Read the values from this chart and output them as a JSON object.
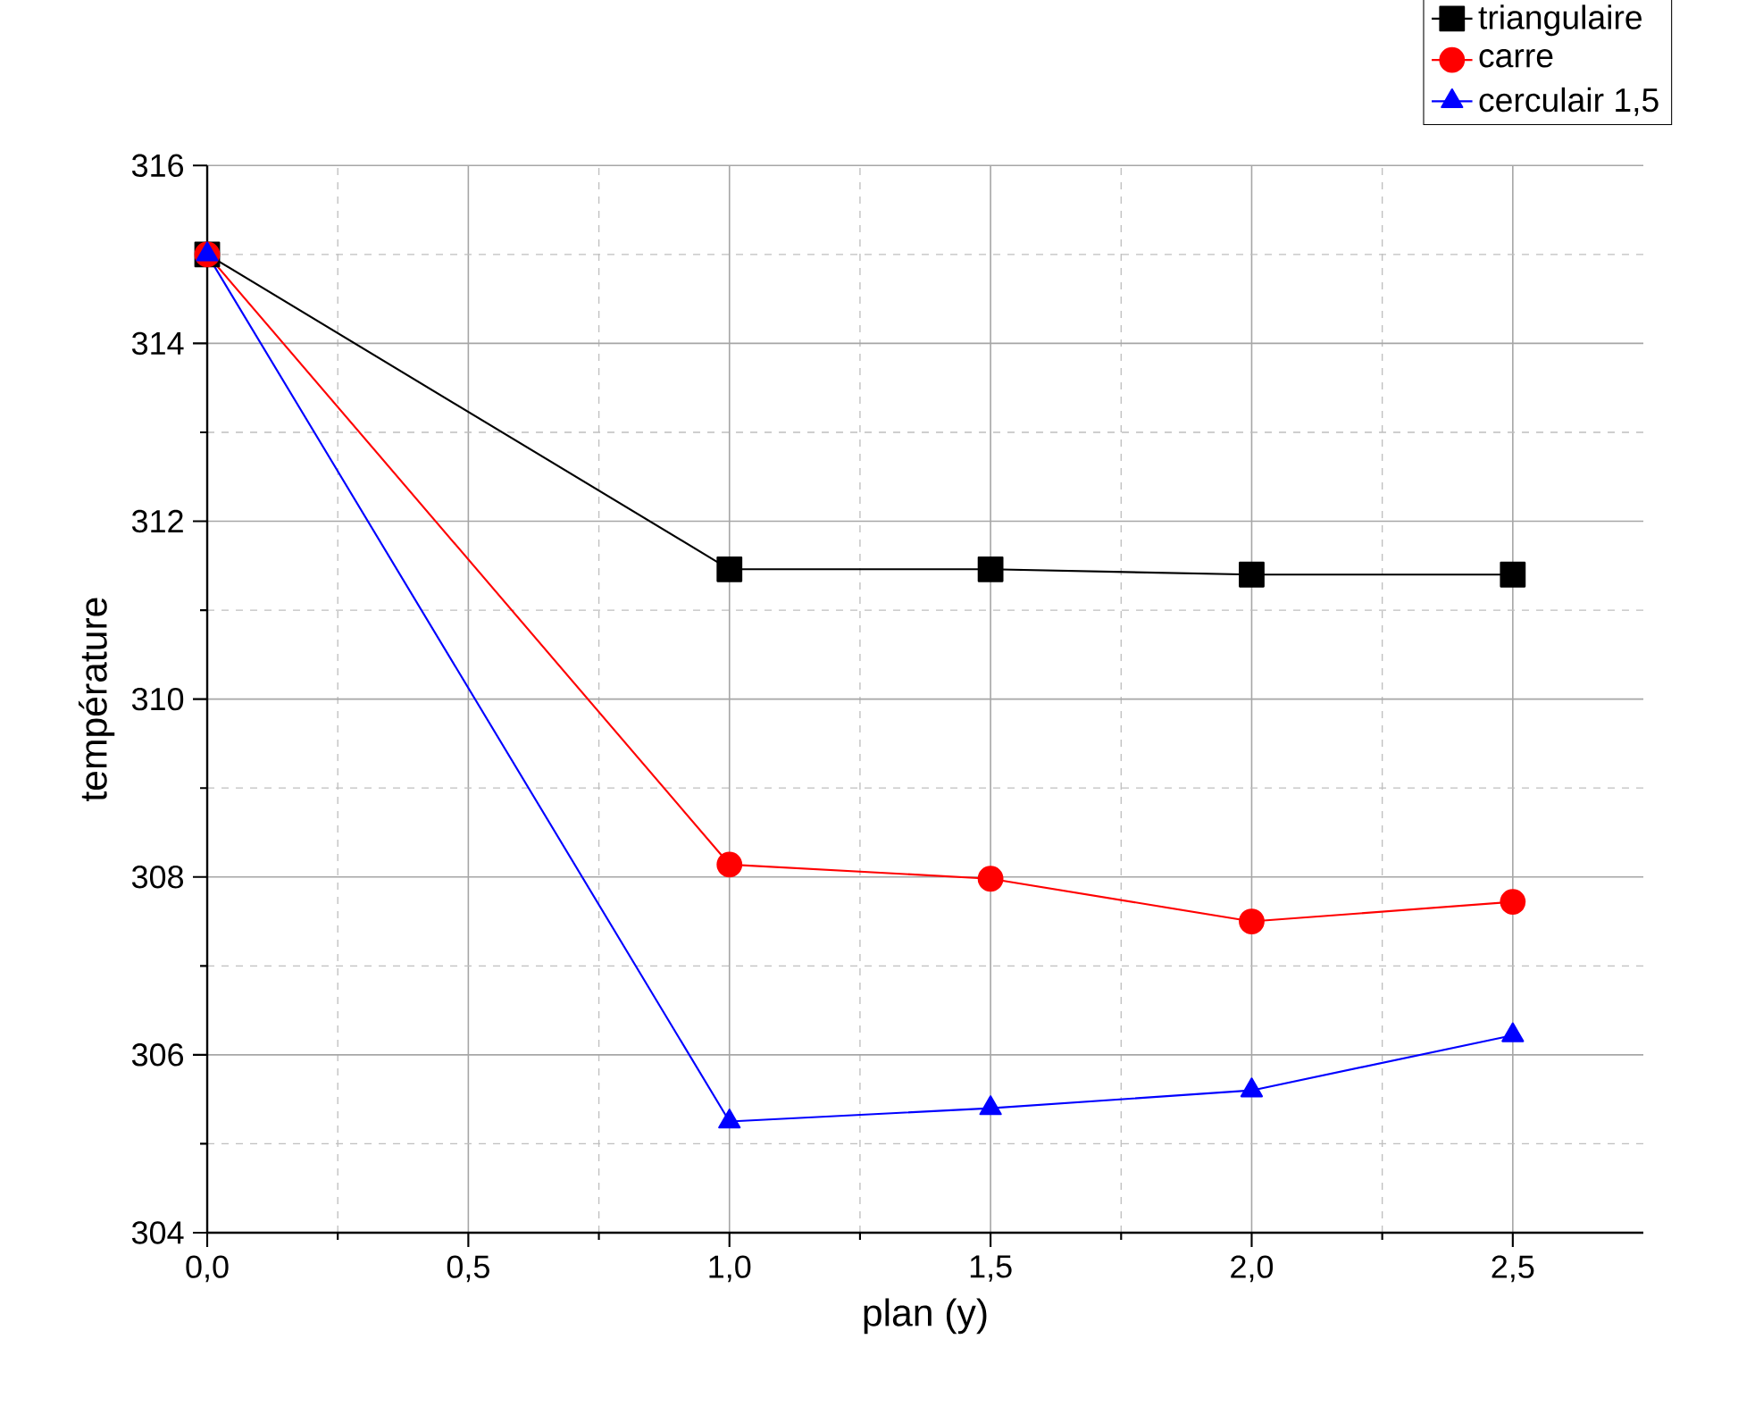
{
  "chart_data": {
    "type": "line",
    "xlabel": "plan (y)",
    "ylabel": "température",
    "x": [
      0,
      1,
      1.5,
      2,
      2.5
    ],
    "series": [
      {
        "name": "triangulaire",
        "color": "#000000",
        "marker": "square",
        "values": [
          315,
          311.46,
          311.46,
          311.4,
          311.4
        ]
      },
      {
        "name": "carre",
        "color": "#ff0000",
        "marker": "circle",
        "values": [
          315,
          308.14,
          307.98,
          307.5,
          307.72
        ]
      },
      {
        "name": "cerculair 1,5",
        "color": "#0000ff",
        "marker": "triangle",
        "values": [
          315,
          305.25,
          305.4,
          305.6,
          306.22
        ]
      }
    ],
    "xlim": [
      0,
      2.75
    ],
    "ylim": [
      304,
      316
    ],
    "xticks": [
      {
        "value": 0,
        "label": "0,0"
      },
      {
        "value": 0.5,
        "label": "0,5"
      },
      {
        "value": 1,
        "label": "1,0"
      },
      {
        "value": 1.5,
        "label": "1,5"
      },
      {
        "value": 2,
        "label": "2,0"
      },
      {
        "value": 2.5,
        "label": "2,5"
      }
    ],
    "yticks": [
      304,
      306,
      308,
      310,
      312,
      314,
      316
    ],
    "grid": true,
    "legend": "top right",
    "line_style": "solid"
  }
}
